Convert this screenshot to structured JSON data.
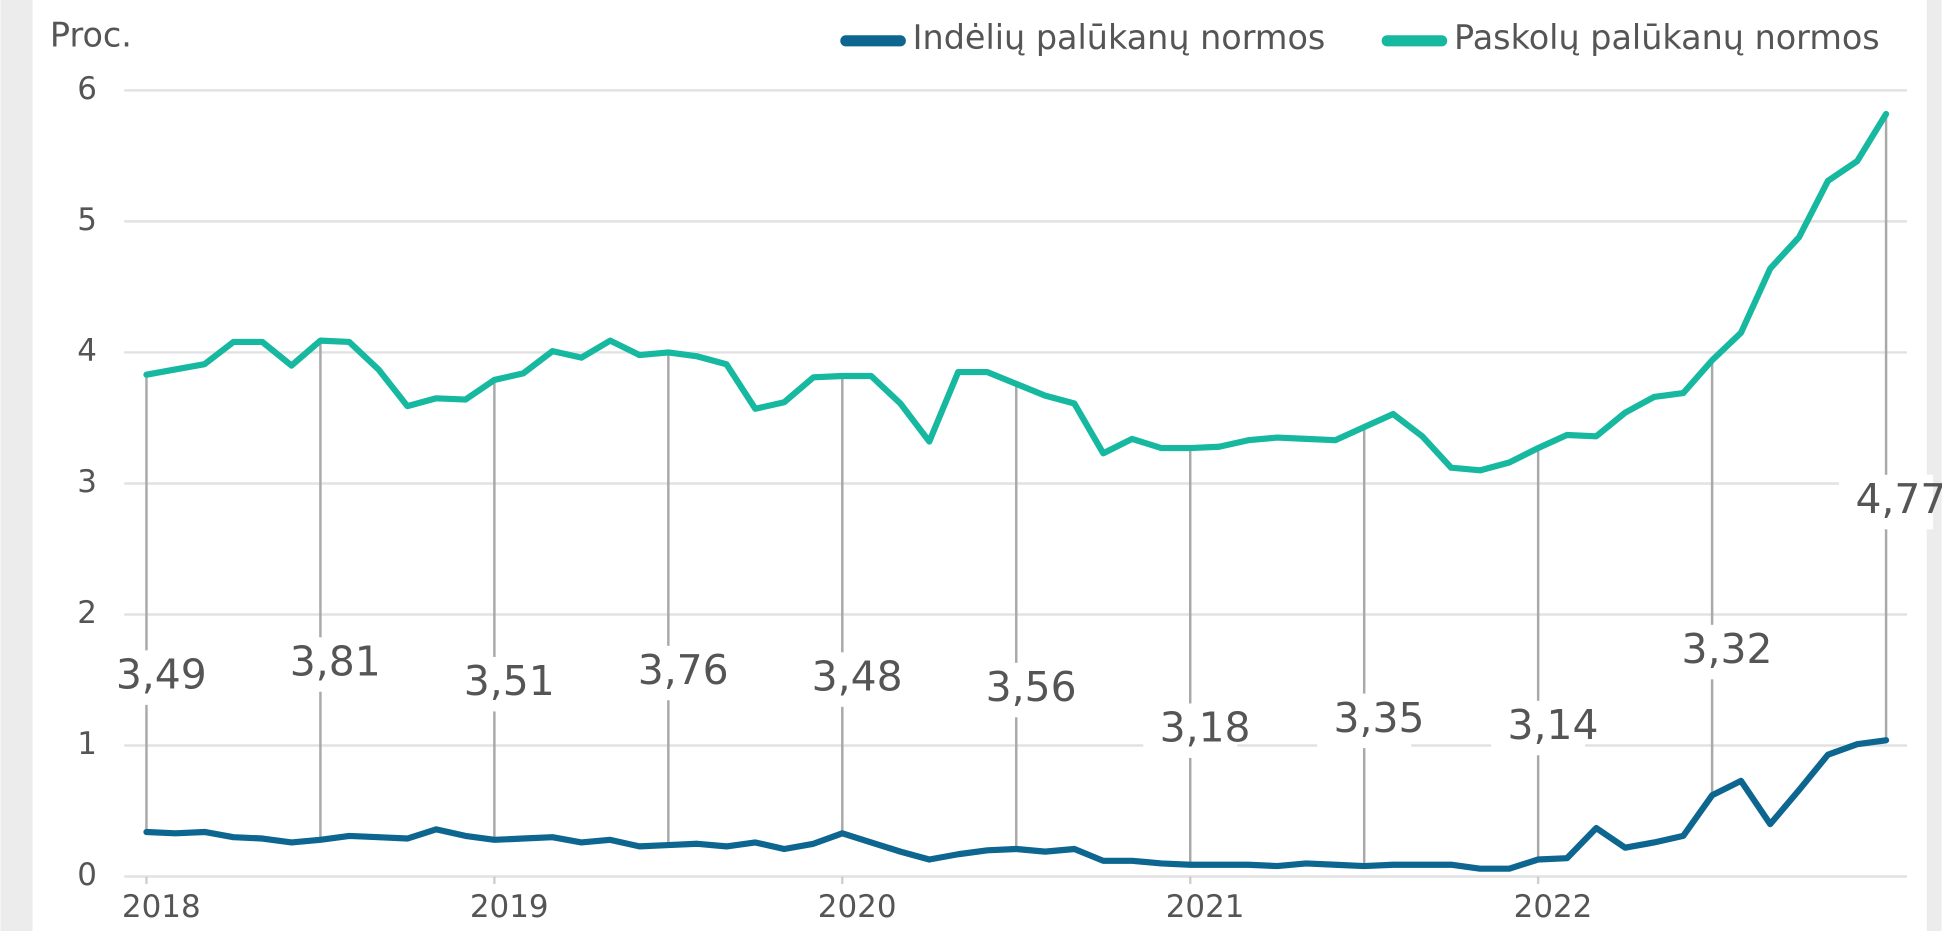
{
  "chart_data": {
    "type": "line",
    "y_label": "Proc.",
    "x": [
      2018,
      2018.083,
      2018.167,
      2018.25,
      2018.333,
      2018.417,
      2018.5,
      2018.583,
      2018.667,
      2018.75,
      2018.833,
      2018.917,
      2019,
      2019.083,
      2019.167,
      2019.25,
      2019.333,
      2019.417,
      2019.5,
      2019.583,
      2019.667,
      2019.75,
      2019.833,
      2019.917,
      2020,
      2020.083,
      2020.167,
      2020.25,
      2020.333,
      2020.417,
      2020.5,
      2020.583,
      2020.667,
      2020.75,
      2020.833,
      2020.917,
      2021,
      2021.083,
      2021.167,
      2021.25,
      2021.333,
      2021.417,
      2021.5,
      2021.583,
      2021.667,
      2021.75,
      2021.833,
      2021.917,
      2022,
      2022.083,
      2022.167,
      2022.25,
      2022.333,
      2022.417,
      2022.5,
      2022.583,
      2022.667,
      2022.75,
      2022.833,
      2022.917,
      2023
    ],
    "series": [
      {
        "name": "Indėlių palūkanų normos",
        "color": "#0d6690",
        "values": [
          0.34,
          0.33,
          0.34,
          0.3,
          0.29,
          0.26,
          0.28,
          0.31,
          0.3,
          0.29,
          0.36,
          0.31,
          0.28,
          0.29,
          0.3,
          0.26,
          0.28,
          0.23,
          0.24,
          0.25,
          0.23,
          0.26,
          0.21,
          0.25,
          0.33,
          0.26,
          0.19,
          0.13,
          0.17,
          0.2,
          0.21,
          0.19,
          0.21,
          0.12,
          0.12,
          0.1,
          0.09,
          0.09,
          0.09,
          0.08,
          0.1,
          0.09,
          0.08,
          0.09,
          0.09,
          0.09,
          0.06,
          0.06,
          0.13,
          0.14,
          0.37,
          0.22,
          0.26,
          0.31,
          0.62,
          0.73,
          0.4,
          0.66,
          0.93,
          1.01,
          1.04
        ]
      },
      {
        "name": "Paskolų palūkanų normos",
        "color": "#17b8a0",
        "values": [
          3.83,
          3.87,
          3.91,
          4.08,
          4.08,
          3.9,
          4.09,
          4.08,
          3.87,
          3.59,
          3.65,
          3.64,
          3.79,
          3.84,
          4.01,
          3.96,
          4.09,
          3.98,
          4.0,
          3.97,
          3.91,
          3.57,
          3.62,
          3.81,
          3.82,
          3.82,
          3.61,
          3.32,
          3.85,
          3.85,
          3.76,
          3.67,
          3.61,
          3.23,
          3.34,
          3.27,
          3.27,
          3.28,
          3.33,
          3.35,
          3.34,
          3.33,
          3.43,
          3.53,
          3.36,
          3.12,
          3.1,
          3.16,
          3.27,
          3.37,
          3.36,
          3.54,
          3.66,
          3.69,
          3.94,
          4.15,
          4.64,
          4.88,
          5.31,
          5.46,
          5.82
        ]
      }
    ],
    "spreads": {
      "x": [
        2018,
        2018.5,
        2019,
        2019.5,
        2020,
        2020.5,
        2021,
        2021.5,
        2022,
        2022.5,
        2023
      ],
      "values": [
        3.49,
        3.81,
        3.51,
        3.76,
        3.48,
        3.56,
        3.18,
        3.35,
        3.14,
        3.32,
        4.77
      ],
      "value_labels": [
        "3,49",
        "3,81",
        "3,51",
        "3,76",
        "3,48",
        "3,56",
        "3,18",
        "3,35",
        "3,14",
        "3,32",
        "4,77"
      ]
    },
    "xlim": [
      2017.936,
      2023.06
    ],
    "xticks": [
      2018,
      2019,
      2020,
      2021,
      2022
    ],
    "ylim": [
      0,
      6
    ],
    "yticks": [
      0,
      1,
      2,
      3,
      4,
      5,
      6
    ],
    "grid": true,
    "legend": "top-right"
  }
}
